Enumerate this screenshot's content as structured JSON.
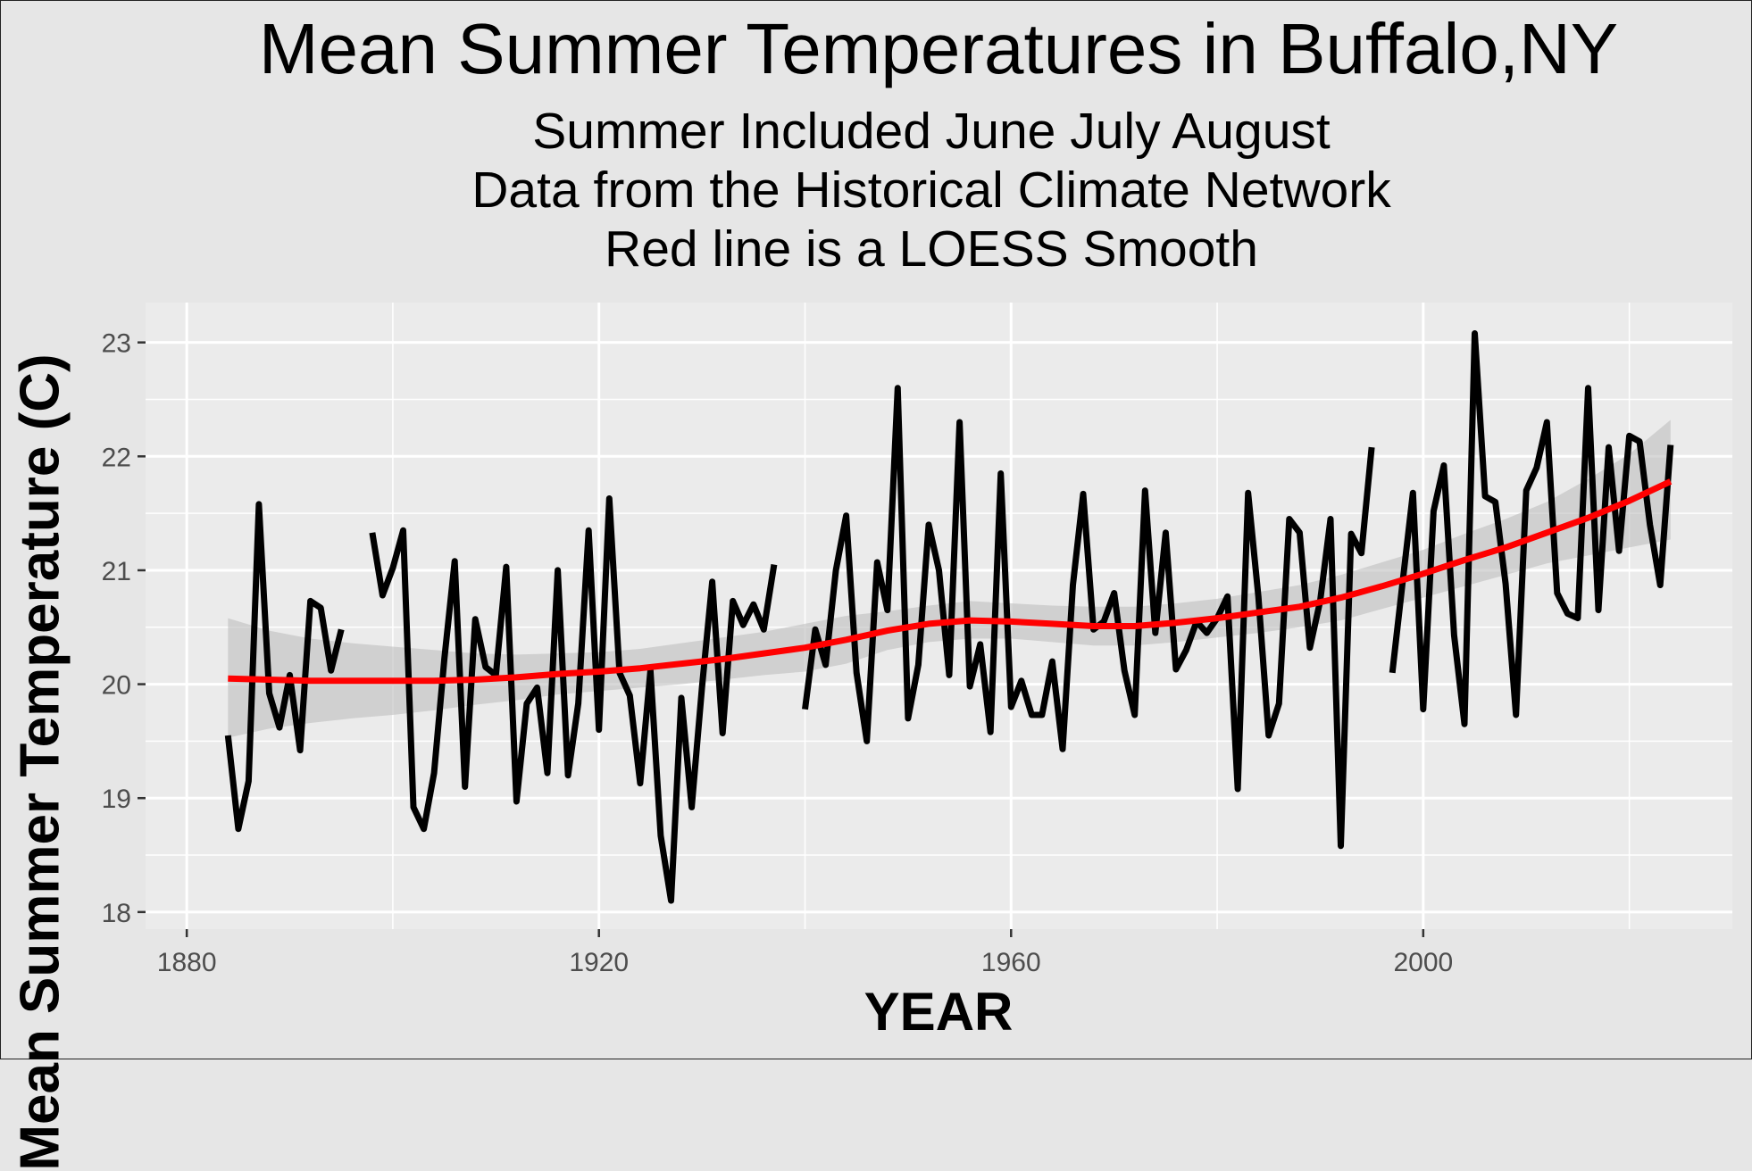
{
  "chart_data": {
    "type": "line",
    "title": "Mean Summer Temperatures in Buffalo,NY",
    "subtitle": [
      "Summer Included June July August",
      "Data from the Historical Climate Network",
      "Red line is a LOESS Smooth"
    ],
    "xlabel": "YEAR",
    "ylabel": "Mean Summer Temperature (C)",
    "xlim": [
      1876,
      2030
    ],
    "ylim": [
      17.85,
      23.35
    ],
    "xticks": [
      1880,
      1920,
      1960,
      2000
    ],
    "yticks": [
      18,
      19,
      20,
      21,
      22,
      23
    ],
    "grid": true,
    "series": [
      {
        "color": "#000000",
        "x": [
          1884,
          1885,
          1886,
          1887,
          1888,
          1889,
          1890,
          1891,
          1892,
          1893,
          1894,
          1895,
          null,
          1898,
          1899,
          1900,
          1901,
          1902,
          1903,
          1904,
          1905,
          1906,
          1907,
          1908,
          1909,
          1910,
          1911,
          1912,
          1913,
          1914,
          1915,
          1916,
          1917,
          1918,
          1919,
          1920,
          1921,
          1922,
          1923,
          1924,
          1925,
          1926,
          1927,
          1928,
          1929,
          1930,
          1931,
          1932,
          1933,
          1934,
          1935,
          1936,
          1937,
          null,
          1940,
          1941,
          1942,
          1943,
          1944,
          1945,
          1946,
          1947,
          1948,
          1949,
          1950,
          1951,
          1952,
          1953,
          1954,
          1955,
          1956,
          1957,
          1958,
          1959,
          1960,
          1961,
          1962,
          1963,
          1964,
          1965,
          1966,
          1967,
          1968,
          1969,
          1970,
          1971,
          1972,
          1973,
          1974,
          1975,
          1976,
          1977,
          1978,
          1979,
          1980,
          1981,
          1982,
          1983,
          1984,
          1985,
          1986,
          1987,
          1988,
          1989,
          1990,
          1991,
          1992,
          1993,
          1994,
          1995,
          null,
          1997,
          1998,
          1999,
          2000,
          2001,
          2002,
          2003,
          2004,
          2005,
          2006,
          2007,
          2008,
          2009,
          2010,
          2011,
          2012,
          2013,
          2014,
          2015,
          2016,
          2017,
          2018,
          2019,
          2020,
          2021,
          2022,
          2023,
          2024
        ],
        "y": [
          19.55,
          18.73,
          19.15,
          21.58,
          19.92,
          19.62,
          20.08,
          19.42,
          20.73,
          20.67,
          20.12,
          20.48,
          null,
          21.33,
          20.78,
          21.02,
          21.35,
          18.92,
          18.73,
          19.22,
          20.22,
          21.08,
          19.1,
          20.57,
          20.15,
          20.08,
          21.03,
          18.97,
          19.83,
          19.97,
          19.22,
          21.0,
          19.2,
          19.83,
          21.35,
          19.6,
          21.63,
          20.1,
          19.9,
          19.13,
          20.12,
          18.67,
          18.1,
          19.88,
          18.92,
          19.97,
          20.9,
          19.57,
          20.73,
          20.52,
          20.7,
          20.48,
          21.05,
          null,
          19.78,
          20.48,
          20.17,
          21.0,
          21.48,
          20.1,
          19.5,
          21.07,
          20.65,
          22.6,
          19.7,
          20.17,
          21.4,
          21.0,
          20.08,
          22.3,
          19.98,
          20.35,
          19.58,
          21.85,
          19.8,
          20.03,
          19.73,
          19.73,
          20.2,
          19.43,
          20.87,
          21.67,
          20.48,
          20.55,
          20.8,
          20.12,
          19.73,
          21.7,
          20.45,
          21.33,
          20.13,
          20.3,
          20.55,
          20.45,
          20.58,
          20.77,
          19.08,
          21.68,
          20.77,
          19.55,
          19.83,
          21.45,
          21.33,
          20.32,
          20.73,
          21.45,
          18.58,
          21.32,
          21.15,
          22.08,
          null,
          20.1,
          20.9,
          21.68,
          19.78,
          21.52,
          21.92,
          20.43,
          19.65,
          23.08,
          21.65,
          21.6,
          20.88,
          19.73,
          21.7,
          21.9,
          22.3,
          20.8,
          20.62,
          20.58,
          22.6,
          20.65,
          22.08,
          21.17,
          22.18,
          22.13,
          21.4,
          20.87,
          22.1
        ]
      },
      {
        "color": "#ff0000",
        "x": [
          1884,
          1888,
          1892,
          1896,
          1900,
          1904,
          1908,
          1912,
          1916,
          1920,
          1924,
          1928,
          1932,
          1936,
          1940,
          1944,
          1948,
          1952,
          1956,
          1960,
          1964,
          1968,
          1972,
          1976,
          1980,
          1984,
          1988,
          1992,
          1996,
          2000,
          2004,
          2008,
          2012,
          2016,
          2020,
          2024
        ],
        "y": [
          20.05,
          20.04,
          20.03,
          20.03,
          20.03,
          20.03,
          20.04,
          20.06,
          20.09,
          20.11,
          20.14,
          20.18,
          20.22,
          20.27,
          20.32,
          20.39,
          20.47,
          20.53,
          20.56,
          20.55,
          20.53,
          20.51,
          20.51,
          20.54,
          20.58,
          20.63,
          20.68,
          20.76,
          20.86,
          20.97,
          21.09,
          21.2,
          21.33,
          21.46,
          21.61,
          21.78
        ]
      },
      {
        "color": "#bebebe",
        "x": [
          1884,
          1888,
          1892,
          1896,
          1900,
          1904,
          1908,
          1912,
          1916,
          1920,
          1924,
          1928,
          1932,
          1936,
          1940,
          1944,
          1948,
          1952,
          1956,
          1960,
          1964,
          1968,
          1972,
          1976,
          1980,
          1984,
          1988,
          1992,
          1996,
          2000,
          2004,
          2008,
          2012,
          2016,
          2020,
          2024
        ],
        "y_low": [
          19.53,
          19.61,
          19.66,
          19.7,
          19.73,
          19.77,
          19.82,
          19.86,
          19.91,
          19.94,
          19.97,
          20.0,
          20.04,
          20.08,
          20.11,
          20.18,
          20.3,
          20.37,
          20.4,
          20.4,
          20.37,
          20.34,
          20.34,
          20.37,
          20.41,
          20.45,
          20.5,
          20.56,
          20.66,
          20.76,
          20.86,
          20.96,
          21.06,
          21.13,
          21.2,
          21.27
        ],
        "y_high": [
          20.58,
          20.47,
          20.4,
          20.36,
          20.33,
          20.3,
          20.27,
          20.26,
          20.27,
          20.28,
          20.31,
          20.36,
          20.41,
          20.46,
          20.53,
          20.6,
          20.64,
          20.69,
          20.73,
          20.71,
          20.69,
          20.68,
          20.68,
          20.71,
          20.75,
          20.81,
          20.87,
          20.96,
          21.07,
          21.18,
          21.32,
          21.45,
          21.6,
          21.8,
          22.02,
          22.32
        ]
      }
    ]
  }
}
